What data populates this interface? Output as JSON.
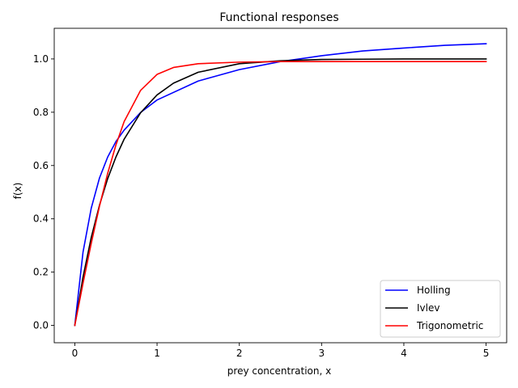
{
  "chart_data": {
    "type": "line",
    "title": "Functional responses",
    "xlabel": "prey concentration, x",
    "ylabel": "f(x)",
    "xlim": [
      -0.25,
      5.25
    ],
    "ylim": [
      -0.065,
      1.115
    ],
    "xticks": [
      0,
      1,
      2,
      3,
      4,
      5
    ],
    "xtick_labels": [
      "0",
      "1",
      "2",
      "3",
      "4",
      "5"
    ],
    "yticks": [
      0.0,
      0.2,
      0.4,
      0.6,
      0.8,
      1.0
    ],
    "ytick_labels": [
      "0.0",
      "0.2",
      "0.4",
      "0.6",
      "0.8",
      "1.0"
    ],
    "legend_position": "bottom-right",
    "series": [
      {
        "name": "Holling",
        "color": "#0000ff",
        "x": [
          0,
          0.1,
          0.2,
          0.3,
          0.4,
          0.5,
          0.6,
          0.8,
          1.0,
          1.5,
          2.0,
          2.5,
          3.0,
          3.5,
          4.0,
          4.5,
          5.0
        ],
        "y": [
          0,
          0.275,
          0.44,
          0.553,
          0.632,
          0.69,
          0.733,
          0.799,
          0.846,
          0.917,
          0.96,
          0.99,
          1.012,
          1.03,
          1.041,
          1.051,
          1.057
        ]
      },
      {
        "name": "Ivlev",
        "color": "#000000",
        "x": [
          0,
          0.1,
          0.2,
          0.3,
          0.4,
          0.5,
          0.6,
          0.8,
          1.0,
          1.2,
          1.5,
          2.0,
          2.5,
          3.0,
          3.5,
          4.0,
          4.5,
          5.0
        ],
        "y": [
          0,
          0.181,
          0.33,
          0.451,
          0.551,
          0.632,
          0.699,
          0.798,
          0.865,
          0.909,
          0.95,
          0.982,
          0.993,
          0.998,
          0.999,
          1.0,
          1.0,
          1.0
        ]
      },
      {
        "name": "Trigonometric",
        "color": "#ff0000",
        "x": [
          0,
          0.1,
          0.2,
          0.3,
          0.4,
          0.5,
          0.6,
          0.8,
          1.0,
          1.2,
          1.5,
          2.0,
          2.5,
          3.0,
          3.5,
          4.0,
          4.5,
          5.0
        ],
        "y": [
          0,
          0.158,
          0.308,
          0.447,
          0.571,
          0.677,
          0.765,
          0.882,
          0.942,
          0.968,
          0.982,
          0.988,
          0.99,
          0.99,
          0.99,
          0.99,
          0.99,
          0.99
        ]
      }
    ]
  }
}
